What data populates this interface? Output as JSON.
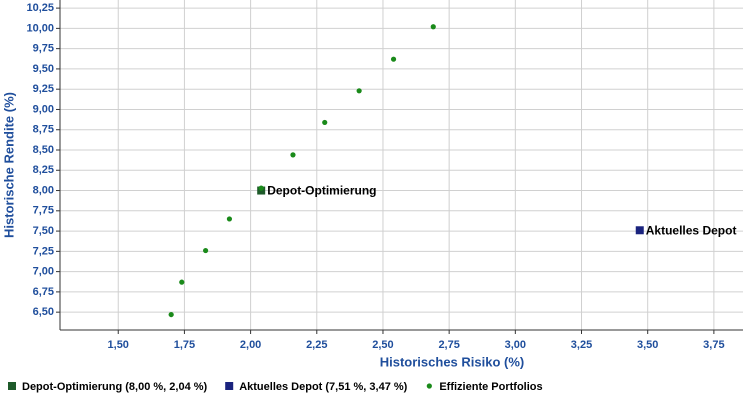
{
  "chart_data": {
    "type": "scatter",
    "xlabel": "Historisches Risiko (%)",
    "ylabel": "Historische Rendite (%)",
    "xlim": [
      1.28,
      3.86
    ],
    "ylim": [
      6.28,
      10.35
    ],
    "grid": true,
    "xticks": [
      {
        "value": 1.5,
        "label": "1,50"
      },
      {
        "value": 1.75,
        "label": "1,75"
      },
      {
        "value": 2,
        "label": "2,00"
      },
      {
        "value": 2.25,
        "label": "2,25"
      },
      {
        "value": 2.5,
        "label": "2,50"
      },
      {
        "value": 2.75,
        "label": "2,75"
      },
      {
        "value": 3,
        "label": "3,00"
      },
      {
        "value": 3.25,
        "label": "3,25"
      },
      {
        "value": 3.5,
        "label": "3,50"
      },
      {
        "value": 3.75,
        "label": "3,75"
      }
    ],
    "yticks": [
      {
        "value": 6.5,
        "label": "6,50"
      },
      {
        "value": 6.75,
        "label": "6,75"
      },
      {
        "value": 7,
        "label": "7,00"
      },
      {
        "value": 7.25,
        "label": "7,25"
      },
      {
        "value": 7.5,
        "label": "7,50"
      },
      {
        "value": 7.75,
        "label": "7,75"
      },
      {
        "value": 8,
        "label": "8,00"
      },
      {
        "value": 8.25,
        "label": "8,25"
      },
      {
        "value": 8.5,
        "label": "8,50"
      },
      {
        "value": 8.75,
        "label": "8,75"
      },
      {
        "value": 9,
        "label": "9,00"
      },
      {
        "value": 9.25,
        "label": "9,25"
      },
      {
        "value": 9.5,
        "label": "9,50"
      },
      {
        "value": 9.75,
        "label": "9,75"
      },
      {
        "value": 10,
        "label": "10,00"
      },
      {
        "value": 10.25,
        "label": "10,25"
      }
    ],
    "series": [
      {
        "name": "Depot-Optimierung (8,00 %, 2,04 %)",
        "point_label": "Depot-Optimierung",
        "marker": "square",
        "color": "#1e5a2a",
        "x": [
          2.04
        ],
        "values": [
          8.0
        ]
      },
      {
        "name": "Aktuelles Depot (7,51 %, 3,47 %)",
        "point_label": "Aktuelles Depot",
        "marker": "square",
        "color": "#1a237e",
        "x": [
          3.47
        ],
        "values": [
          7.51
        ]
      },
      {
        "name": "Effiziente Portfolios",
        "marker": "circle",
        "color": "#1a8a1a",
        "x": [
          1.7,
          1.74,
          1.83,
          1.92,
          2.04,
          2.16,
          2.28,
          2.41,
          2.54,
          2.69
        ],
        "values": [
          6.47,
          6.87,
          7.26,
          7.65,
          8.03,
          8.44,
          8.84,
          9.23,
          9.62,
          10.02
        ]
      }
    ]
  }
}
